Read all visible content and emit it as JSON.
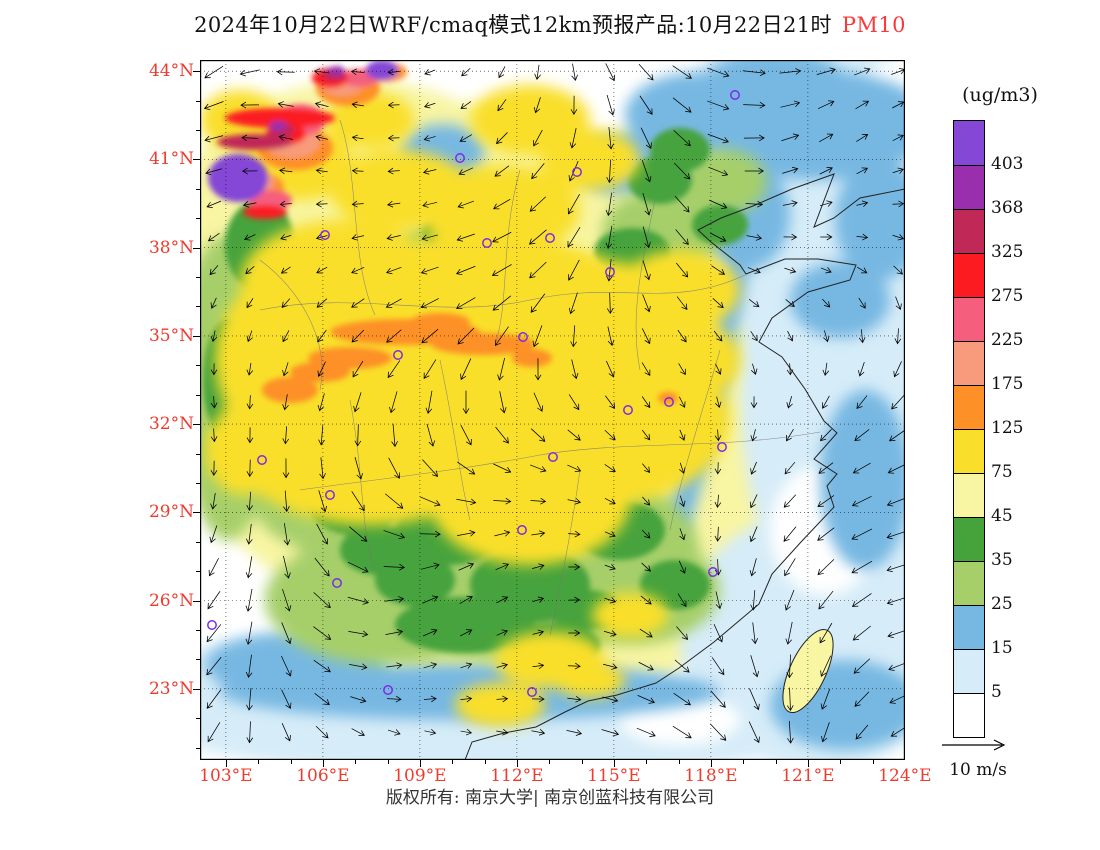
{
  "title": {
    "main": "2024年10月22日WRF/cmaq模式12km预报产品:10月22日21时",
    "pollutant": "PM10"
  },
  "axes": {
    "lat_labels": [
      "44°N",
      "41°N",
      "38°N",
      "35°N",
      "32°N",
      "29°N",
      "26°N",
      "23°N"
    ],
    "lon_labels": [
      "103°E",
      "106°E",
      "109°E",
      "112°E",
      "115°E",
      "118°E",
      "121°E",
      "124°E"
    ]
  },
  "legend": {
    "unit": "(ug/m3)",
    "values": [
      "403",
      "368",
      "325",
      "275",
      "225",
      "175",
      "125",
      "75",
      "45",
      "35",
      "25",
      "15",
      "5"
    ],
    "colors": [
      "#8447d6",
      "#9a2fae",
      "#c02858",
      "#fb1b20",
      "#f55f7d",
      "#f79b7c",
      "#fd9026",
      "#f9df2c",
      "#f8f5a3",
      "#46a33c",
      "#a6cf6a",
      "#77b8e2",
      "#d6ecf8",
      "#ffffff"
    ]
  },
  "wind_scale": {
    "label": "10 m/s"
  },
  "footer": {
    "copyright": "版权所有: 南京大学| 南京创蓝科技有限公司"
  },
  "colors": {
    "axis_labels": "#ee3b2e",
    "title_pollutant": "#fa3a3a",
    "city_marker": "#7d2ae8",
    "coastline": "#222222",
    "arrow": "#000000"
  },
  "chart_data": {
    "type": "heatmap",
    "title": "2024年10月22日WRF/cmaq模式12km预报产品:10月22日21时 PM10",
    "variable": "PM10",
    "unit": "ug/m3",
    "x_ticks": [
      "103°E",
      "106°E",
      "109°E",
      "112°E",
      "115°E",
      "118°E",
      "121°E",
      "124°E"
    ],
    "y_ticks": [
      "23°N",
      "26°N",
      "29°N",
      "32°N",
      "35°N",
      "38°N",
      "41°N",
      "44°N"
    ],
    "lon_range": [
      103,
      124
    ],
    "lat_range": [
      23,
      44
    ],
    "contour_levels": [
      5,
      15,
      25,
      35,
      45,
      75,
      125,
      175,
      225,
      275,
      325,
      368,
      403
    ],
    "level_colors_high_to_low": [
      "#8447d6",
      "#9a2fae",
      "#c02858",
      "#fb1b20",
      "#f55f7d",
      "#f79b7c",
      "#fd9026",
      "#f9df2c",
      "#f8f5a3",
      "#46a33c",
      "#a6cf6a",
      "#77b8e2",
      "#d6ecf8",
      "#ffffff"
    ],
    "legend_position": "right",
    "wind_reference_label": "10 m/s",
    "overlays": [
      "wind vector field",
      "city ring markers",
      "coastlines and province boundaries",
      "dotted 3-degree graticule"
    ],
    "notable_features": [
      "PM10 maxima exceeding 368-403 ug/m3 (purple/maroon) in the northwest corner near 103-106E, 40-44N",
      "Broad 75-125 ug/m3 yellow field over central and eastern China roughly 29-38N",
      "Orange 125-175 ug/m3 band near 35N between 106E and 113E",
      "Green 25-45 ug/m3 values over southern inland China",
      "Low values 5-25 ug/m3 (blue/white) over the northeast, coastal seas and the southern coastal strip",
      "Strong northeasterly-to-southward wind vectors over the coastal seas; 10 m/s reference arrow"
    ]
  }
}
